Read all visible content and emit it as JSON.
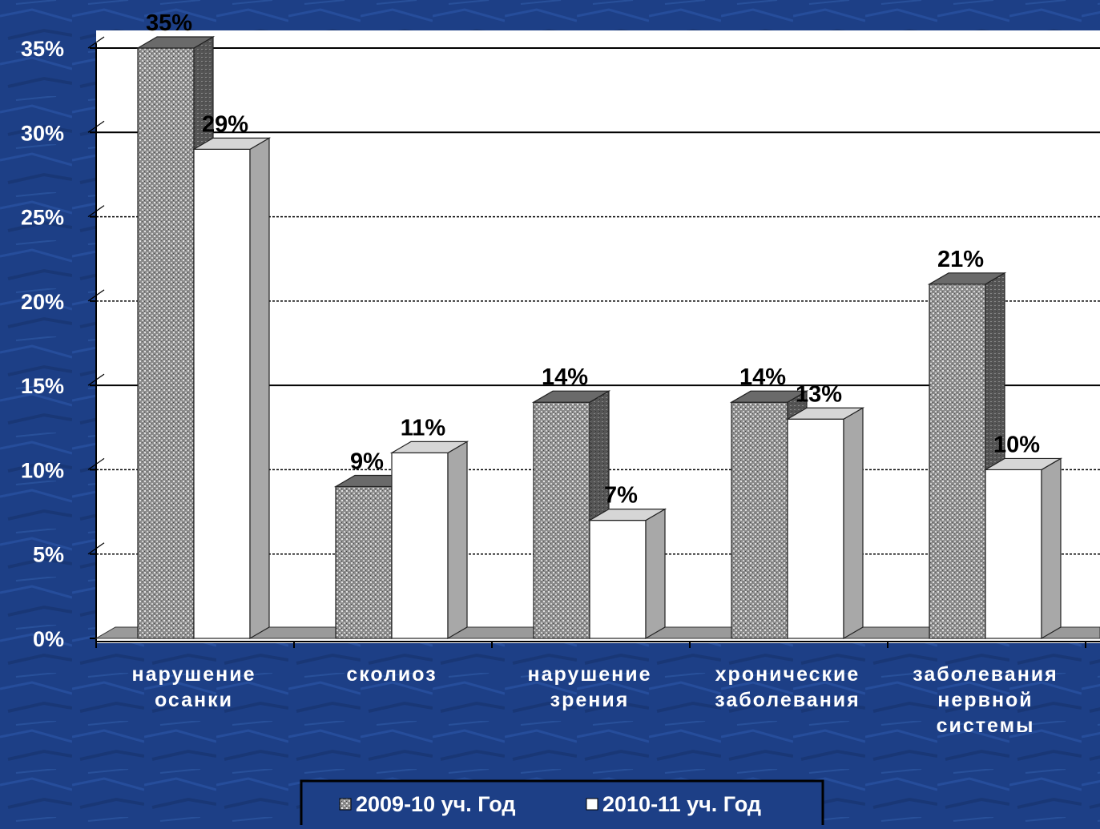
{
  "chart_data": {
    "type": "bar",
    "categories": [
      [
        "нарушение",
        "осанки"
      ],
      [
        "сколиоз"
      ],
      [
        "нарушение",
        "зрения"
      ],
      [
        "хронические",
        "заболевания"
      ],
      [
        "заболевания",
        "нервной",
        "системы"
      ]
    ],
    "series": [
      {
        "name": "2009-10 уч. Год",
        "values": [
          35,
          9,
          14,
          14,
          21
        ],
        "labels": [
          "35%",
          "9%",
          "14%",
          "14%",
          "21%"
        ]
      },
      {
        "name": "2010-11 уч. Год",
        "values": [
          29,
          11,
          7,
          13,
          10
        ],
        "labels": [
          "29%",
          "11%",
          "7%",
          "13%",
          "10%"
        ]
      }
    ],
    "y_ticks": [
      "0%",
      "5%",
      "10%",
      "15%",
      "20%",
      "25%",
      "30%",
      "35%"
    ],
    "ylim": [
      0,
      35
    ],
    "title": "",
    "xlabel": "",
    "ylabel": "",
    "legend_position": "bottom-center",
    "grid": true,
    "colors": {
      "background": "#1d3f86",
      "plot_area": "#ffffff",
      "series1": "#8a8a8a",
      "series2": "#ffffff",
      "label_text": "#000000",
      "axis_text": "#ffffff"
    }
  }
}
